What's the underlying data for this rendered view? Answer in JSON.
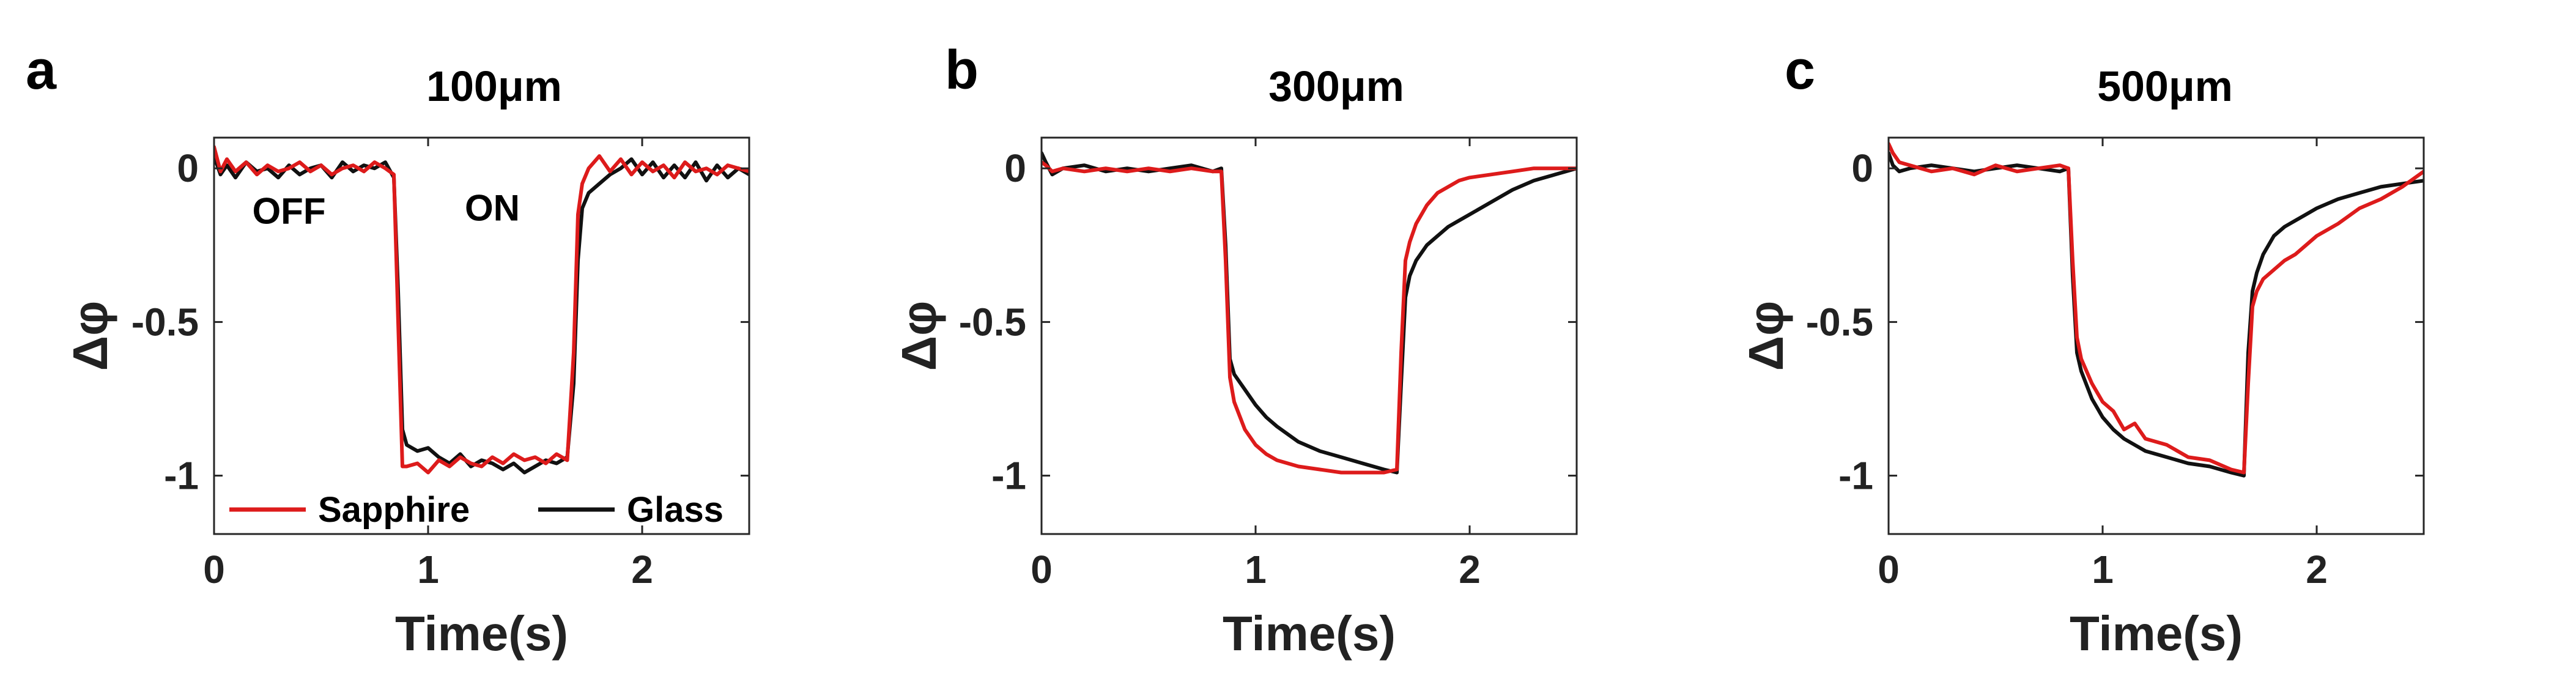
{
  "colors": {
    "sapphire": "#dd1b1b",
    "glass": "#111111",
    "axis": "#262626"
  },
  "panels": [
    {
      "letter": "a",
      "title": "100μm"
    },
    {
      "letter": "b",
      "title": "300μm"
    },
    {
      "letter": "c",
      "title": "500μm"
    }
  ],
  "annotations": {
    "off": "OFF",
    "on": "ON"
  },
  "legend": {
    "sapphire": "Sapphire",
    "glass": "Glass"
  },
  "chart_data": [
    {
      "type": "line",
      "title": "100μm",
      "xlabel": "Time(s)",
      "ylabel": "Δφ",
      "xlim": [
        0,
        2.5
      ],
      "ylim": [
        -1.19,
        0.1
      ],
      "xticks": [
        0,
        1,
        2
      ],
      "yticks": [
        -1,
        -0.5,
        0
      ],
      "ytick_labels": [
        "-1",
        "-0.5",
        "0"
      ],
      "legend_position": "bottom",
      "annotations": [
        {
          "text": "OFF",
          "x": 0.35,
          "y": -0.18
        },
        {
          "text": "ON",
          "x": 1.3,
          "y": -0.17
        }
      ],
      "series": [
        {
          "name": "Sapphire",
          "color": "#dd1b1b",
          "x": [
            0,
            0.03,
            0.06,
            0.1,
            0.15,
            0.2,
            0.25,
            0.3,
            0.35,
            0.4,
            0.45,
            0.5,
            0.55,
            0.6,
            0.65,
            0.7,
            0.75,
            0.8,
            0.84,
            0.86,
            0.88,
            0.9,
            0.95,
            1.0,
            1.05,
            1.1,
            1.15,
            1.2,
            1.25,
            1.3,
            1.35,
            1.4,
            1.45,
            1.5,
            1.55,
            1.6,
            1.65,
            1.68,
            1.7,
            1.72,
            1.75,
            1.8,
            1.85,
            1.9,
            1.95,
            2.0,
            2.05,
            2.1,
            2.15,
            2.2,
            2.25,
            2.3,
            2.35,
            2.4,
            2.45,
            2.5
          ],
          "y": [
            0.07,
            -0.01,
            0.03,
            -0.01,
            0.02,
            -0.02,
            0.01,
            -0.01,
            0.0,
            0.02,
            -0.01,
            0.01,
            -0.02,
            0.0,
            0.01,
            -0.01,
            0.02,
            0.0,
            -0.02,
            -0.5,
            -0.97,
            -0.97,
            -0.96,
            -0.99,
            -0.95,
            -0.97,
            -0.94,
            -0.96,
            -0.97,
            -0.94,
            -0.96,
            -0.93,
            -0.95,
            -0.94,
            -0.96,
            -0.93,
            -0.95,
            -0.6,
            -0.15,
            -0.05,
            0.0,
            0.04,
            -0.01,
            0.03,
            -0.02,
            0.02,
            -0.01,
            0.01,
            -0.03,
            0.02,
            -0.01,
            0.0,
            -0.02,
            0.01,
            0.0,
            -0.01
          ]
        },
        {
          "name": "Glass",
          "color": "#111111",
          "x": [
            0,
            0.03,
            0.06,
            0.1,
            0.15,
            0.2,
            0.25,
            0.3,
            0.35,
            0.4,
            0.45,
            0.5,
            0.55,
            0.6,
            0.65,
            0.7,
            0.75,
            0.8,
            0.84,
            0.86,
            0.88,
            0.9,
            0.95,
            1.0,
            1.05,
            1.1,
            1.15,
            1.2,
            1.25,
            1.3,
            1.35,
            1.4,
            1.45,
            1.5,
            1.55,
            1.6,
            1.65,
            1.68,
            1.7,
            1.72,
            1.75,
            1.8,
            1.85,
            1.9,
            1.95,
            2.0,
            2.05,
            2.1,
            2.15,
            2.2,
            2.25,
            2.3,
            2.35,
            2.4,
            2.45,
            2.5
          ],
          "y": [
            0.04,
            -0.02,
            0.01,
            -0.03,
            0.02,
            -0.01,
            0.0,
            -0.03,
            0.01,
            -0.02,
            0.0,
            0.01,
            -0.03,
            0.02,
            -0.01,
            0.01,
            0.0,
            0.02,
            -0.03,
            -0.4,
            -0.85,
            -0.9,
            -0.92,
            -0.91,
            -0.94,
            -0.96,
            -0.93,
            -0.97,
            -0.95,
            -0.96,
            -0.98,
            -0.96,
            -0.99,
            -0.97,
            -0.95,
            -0.96,
            -0.94,
            -0.7,
            -0.3,
            -0.13,
            -0.08,
            -0.05,
            -0.02,
            0.0,
            0.03,
            -0.02,
            0.02,
            -0.03,
            0.01,
            -0.03,
            0.02,
            -0.04,
            0.01,
            -0.03,
            0.0,
            -0.02
          ]
        }
      ]
    },
    {
      "type": "line",
      "title": "300μm",
      "xlabel": "Time(s)",
      "ylabel": "Δφ",
      "xlim": [
        0,
        2.5
      ],
      "ylim": [
        -1.19,
        0.1
      ],
      "xticks": [
        0,
        1,
        2
      ],
      "yticks": [
        -1,
        -0.5,
        0
      ],
      "ytick_labels": [
        "-1",
        "-0.5",
        "0"
      ],
      "series": [
        {
          "name": "Sapphire",
          "color": "#dd1b1b",
          "x": [
            0,
            0.02,
            0.05,
            0.1,
            0.2,
            0.3,
            0.4,
            0.5,
            0.6,
            0.7,
            0.8,
            0.84,
            0.86,
            0.88,
            0.9,
            0.95,
            1.0,
            1.05,
            1.1,
            1.2,
            1.3,
            1.4,
            1.5,
            1.6,
            1.66,
            1.68,
            1.7,
            1.72,
            1.75,
            1.8,
            1.85,
            1.9,
            1.95,
            2.0,
            2.1,
            2.2,
            2.3,
            2.4,
            2.5
          ],
          "y": [
            0.02,
            0.01,
            -0.01,
            0.0,
            -0.01,
            0.0,
            -0.01,
            0.0,
            -0.01,
            0.0,
            -0.01,
            -0.01,
            -0.3,
            -0.68,
            -0.76,
            -0.85,
            -0.9,
            -0.93,
            -0.95,
            -0.97,
            -0.98,
            -0.99,
            -0.99,
            -0.99,
            -0.98,
            -0.6,
            -0.3,
            -0.24,
            -0.18,
            -0.12,
            -0.08,
            -0.06,
            -0.04,
            -0.03,
            -0.02,
            -0.01,
            0.0,
            0.0,
            0.0
          ]
        },
        {
          "name": "Glass",
          "color": "#111111",
          "x": [
            0,
            0.02,
            0.05,
            0.1,
            0.2,
            0.3,
            0.4,
            0.5,
            0.6,
            0.7,
            0.8,
            0.84,
            0.86,
            0.88,
            0.9,
            0.95,
            1.0,
            1.05,
            1.1,
            1.2,
            1.3,
            1.4,
            1.5,
            1.6,
            1.66,
            1.68,
            1.7,
            1.72,
            1.75,
            1.8,
            1.85,
            1.9,
            1.95,
            2.0,
            2.1,
            2.2,
            2.3,
            2.4,
            2.5
          ],
          "y": [
            0.05,
            0.02,
            -0.02,
            0.0,
            0.01,
            -0.01,
            0.0,
            -0.01,
            0.0,
            0.01,
            -0.01,
            0.0,
            -0.25,
            -0.62,
            -0.67,
            -0.72,
            -0.77,
            -0.81,
            -0.84,
            -0.89,
            -0.92,
            -0.94,
            -0.96,
            -0.98,
            -0.99,
            -0.7,
            -0.42,
            -0.35,
            -0.3,
            -0.25,
            -0.22,
            -0.19,
            -0.17,
            -0.15,
            -0.11,
            -0.07,
            -0.04,
            -0.02,
            0.0
          ]
        }
      ]
    },
    {
      "type": "line",
      "title": "500μm",
      "xlabel": "Time(s)",
      "ylabel": "Δφ",
      "xlim": [
        0,
        2.5
      ],
      "ylim": [
        -1.19,
        0.1
      ],
      "xticks": [
        0,
        1,
        2
      ],
      "yticks": [
        -1,
        -0.5,
        0
      ],
      "ytick_labels": [
        "-1",
        "-0.5",
        "0"
      ],
      "series": [
        {
          "name": "Sapphire",
          "color": "#dd1b1b",
          "x": [
            0,
            0.02,
            0.05,
            0.1,
            0.2,
            0.3,
            0.4,
            0.5,
            0.6,
            0.7,
            0.8,
            0.84,
            0.86,
            0.88,
            0.9,
            0.95,
            1.0,
            1.05,
            1.1,
            1.15,
            1.2,
            1.3,
            1.4,
            1.5,
            1.6,
            1.66,
            1.68,
            1.7,
            1.72,
            1.75,
            1.8,
            1.85,
            1.9,
            1.95,
            2.0,
            2.1,
            2.2,
            2.3,
            2.4,
            2.5
          ],
          "y": [
            0.08,
            0.05,
            0.02,
            0.01,
            -0.01,
            0.0,
            -0.02,
            0.01,
            -0.01,
            0.0,
            0.01,
            0.0,
            -0.3,
            -0.55,
            -0.62,
            -0.7,
            -0.76,
            -0.79,
            -0.85,
            -0.83,
            -0.88,
            -0.9,
            -0.94,
            -0.95,
            -0.98,
            -0.99,
            -0.7,
            -0.45,
            -0.4,
            -0.36,
            -0.33,
            -0.3,
            -0.28,
            -0.25,
            -0.22,
            -0.18,
            -0.13,
            -0.1,
            -0.06,
            -0.01
          ]
        },
        {
          "name": "Glass",
          "color": "#111111",
          "x": [
            0,
            0.02,
            0.05,
            0.1,
            0.2,
            0.3,
            0.4,
            0.5,
            0.6,
            0.7,
            0.8,
            0.84,
            0.86,
            0.88,
            0.9,
            0.95,
            1.0,
            1.05,
            1.1,
            1.15,
            1.2,
            1.3,
            1.4,
            1.5,
            1.6,
            1.66,
            1.68,
            1.7,
            1.72,
            1.75,
            1.8,
            1.85,
            1.9,
            1.95,
            2.0,
            2.1,
            2.2,
            2.3,
            2.4,
            2.5
          ],
          "y": [
            0.05,
            0.01,
            -0.01,
            0.0,
            0.01,
            0.0,
            -0.01,
            0.0,
            0.01,
            0.0,
            -0.01,
            0.0,
            -0.35,
            -0.6,
            -0.66,
            -0.75,
            -0.81,
            -0.85,
            -0.88,
            -0.9,
            -0.92,
            -0.94,
            -0.96,
            -0.97,
            -0.99,
            -1.0,
            -0.6,
            -0.4,
            -0.34,
            -0.28,
            -0.22,
            -0.19,
            -0.17,
            -0.15,
            -0.13,
            -0.1,
            -0.08,
            -0.06,
            -0.05,
            -0.04
          ]
        }
      ]
    }
  ]
}
